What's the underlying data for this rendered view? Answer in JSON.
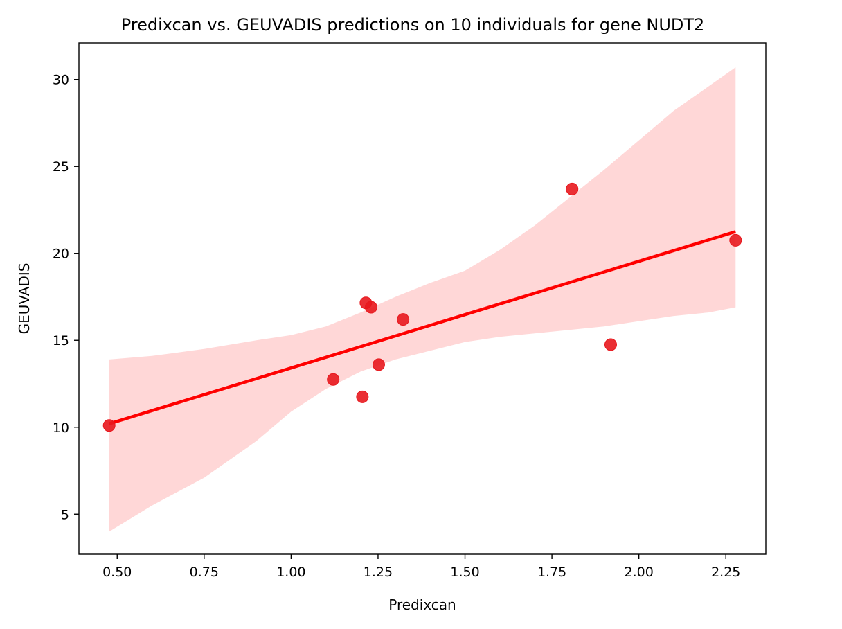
{
  "chart_data": {
    "type": "scatter",
    "title": "Predixcan vs. GEUVADIS predictions on 10 individuals for gene NUDT2",
    "xlabel": "Predixcan",
    "ylabel": "GEUVADIS",
    "xlim": [
      0.39,
      2.365
    ],
    "ylim": [
      2.7,
      32.1
    ],
    "xticks": [
      "0.50",
      "0.75",
      "1.00",
      "1.25",
      "1.50",
      "1.75",
      "2.00",
      "2.25"
    ],
    "yticks": [
      "5",
      "10",
      "15",
      "20",
      "25",
      "30"
    ],
    "grid": false,
    "colors": {
      "point": "#e8181e",
      "line": "#ff0000",
      "band": "#ffd7d7"
    },
    "points": [
      {
        "x": 0.477,
        "y": 10.1
      },
      {
        "x": 1.121,
        "y": 12.75
      },
      {
        "x": 1.205,
        "y": 11.75
      },
      {
        "x": 1.215,
        "y": 17.15
      },
      {
        "x": 1.23,
        "y": 16.9
      },
      {
        "x": 1.252,
        "y": 13.6
      },
      {
        "x": 1.322,
        "y": 16.2
      },
      {
        "x": 1.808,
        "y": 23.7
      },
      {
        "x": 1.919,
        "y": 14.75
      },
      {
        "x": 2.278,
        "y": 20.75
      }
    ],
    "regression_line": [
      {
        "x": 0.477,
        "y": 10.2
      },
      {
        "x": 2.278,
        "y": 21.25
      }
    ],
    "confidence_band": {
      "x": [
        0.477,
        0.6,
        0.75,
        0.9,
        1.0,
        1.1,
        1.2,
        1.3,
        1.4,
        1.5,
        1.6,
        1.7,
        1.8,
        1.9,
        2.0,
        2.1,
        2.2,
        2.278
      ],
      "upper": [
        13.9,
        14.1,
        14.5,
        15.0,
        15.3,
        15.8,
        16.6,
        17.5,
        18.3,
        19.0,
        20.2,
        21.6,
        23.2,
        24.8,
        26.5,
        28.2,
        29.6,
        30.7
      ],
      "lower": [
        4.0,
        5.5,
        7.1,
        9.2,
        10.9,
        12.2,
        13.2,
        13.9,
        14.4,
        14.9,
        15.2,
        15.4,
        15.6,
        15.8,
        16.1,
        16.4,
        16.6,
        16.9
      ]
    }
  }
}
